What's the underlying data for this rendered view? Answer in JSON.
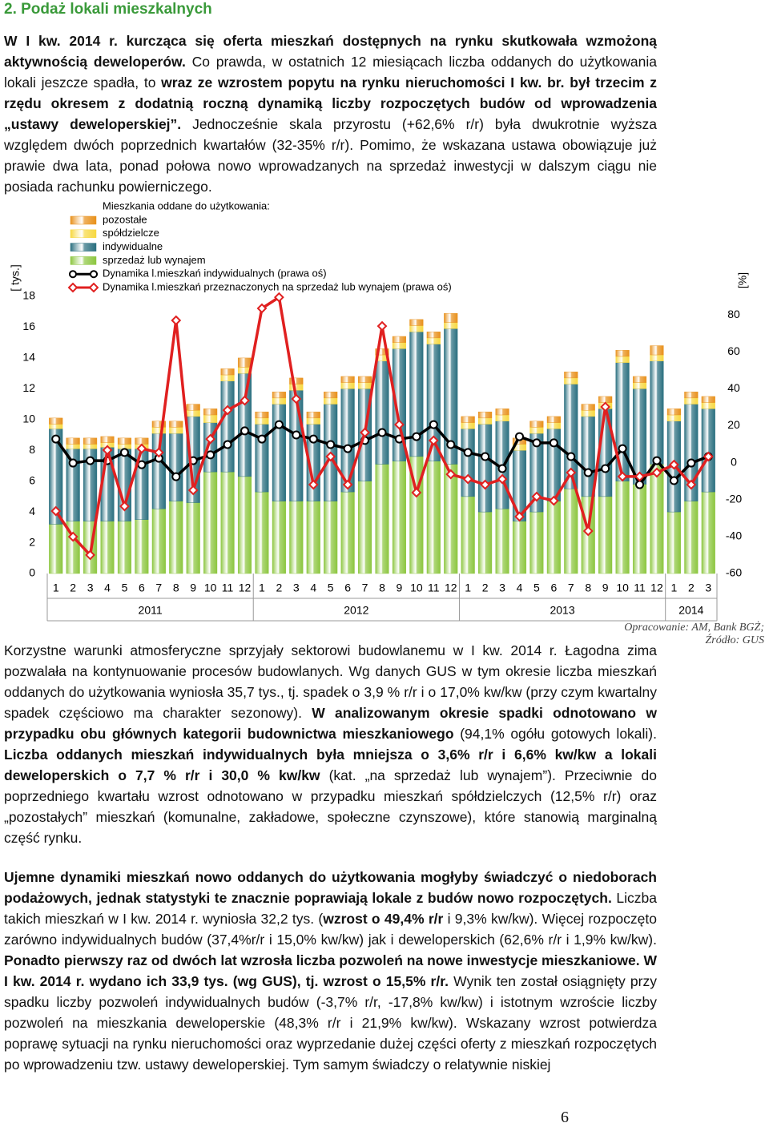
{
  "heading": "2. Podaż lokali mieszkalnych",
  "paragraphs": [
    {
      "runs": [
        {
          "text": "W I kw. 2014 r. kurcząca się oferta mieszkań dostępnych na rynku skutkowała wzmożoną aktywnością deweloperów.",
          "bold": true
        },
        {
          "text": " Co prawda, w ostatnich 12 miesiącach liczba oddanych do użytkowania lokali jeszcze spadła, to ",
          "bold": false
        },
        {
          "text": "wraz ze wzrostem popytu na rynku nieruchomości I kw. br. był trzecim z rzędu okresem z dodatnią roczną dynamiką liczby rozpoczętych budów od wprowadzenia „ustawy deweloperskiej”.",
          "bold": true
        },
        {
          "text": " Jednocześnie skala przyrostu (+62,6% r/r) była dwukrotnie wyższa względem dwóch poprzednich kwartałów (32-35% r/r). Pomimo, że wskazana ustawa obowiązuje już prawie dwa lata, ponad połowa nowo wprowadzanych na sprzedaż inwestycji w dalszym ciągu nie posiada rachunku powierniczego.",
          "bold": false
        }
      ]
    },
    {
      "runs": [
        {
          "text": "Korzystne warunki atmosferyczne sprzyjały sektorowi budowlanemu w I kw. 2014 r. Łagodna zima pozwalała na kontynuowanie procesów budowlanych. Wg danych GUS w tym okresie liczba mieszkań oddanych do użytkowania wyniosła 35,7 tys., tj. spadek o 3,9 % r/r i o 17,0% kw/kw (przy czym kwartalny spadek częściowo ma charakter sezonowy). ",
          "bold": false
        },
        {
          "text": "W analizowanym okresie spadki odnotowano w przypadku obu głównych kategorii budownictwa mieszkaniowego",
          "bold": true
        },
        {
          "text": " (94,1% ogółu gotowych lokali). ",
          "bold": false
        },
        {
          "text": "Liczba oddanych mieszkań indywidualnych była mniejsza o 3,6% r/r i 6,6% kw/kw a lokali deweloperskich o 7,7 % r/r i 30,0 % kw/kw",
          "bold": true
        },
        {
          "text": " (kat. „na sprzedaż lub wynajem”). Przeciwnie do poprzedniego kwartału wzrost odnotowano w przypadku mieszkań spółdzielczych (12,5% r/r) oraz „pozostałych” mieszkań (komunalne, zakładowe, społeczne czynszowe), które stanowią marginalną część rynku.",
          "bold": false
        }
      ]
    },
    {
      "runs": [
        {
          "text": "Ujemne dynamiki mieszkań nowo oddanych do użytkowania mogłyby świadczyć o niedoborach podażowych, jednak statystyki te znacznie poprawiają lokale z budów nowo rozpoczętych.",
          "bold": true
        },
        {
          "text": " Liczba takich mieszkań w I kw. 2014 r. wyniosła 32,2 tys. (",
          "bold": false
        },
        {
          "text": "wzrost o 49,4% r/r",
          "bold": true
        },
        {
          "text": " i 9,3% kw/kw). Więcej rozpoczęto zarówno indywidualnych budów (37,4%r/r i 15,0% kw/kw) jak i deweloperskich (62,6% r/r i 1,9% kw/kw). ",
          "bold": false
        },
        {
          "text": "Ponadto pierwszy raz od dwóch lat wzrosła liczba pozwoleń na nowe inwestycje mieszkaniowe. W I kw. 2014 r. wydano ich 33,9 tys. (wg GUS), tj. wzrost o 15,5% r/r.",
          "bold": true
        },
        {
          "text": " Wynik ten został osiągnięty przy spadku liczby pozwoleń indywidualnych budów (-3,7% r/r, -17,8% kw/kw) i istotnym wzroście liczby pozwoleń na mieszkania deweloperskie (48,3% r/r i 21,9% kw/kw). Wskazany wzrost potwierdza poprawę sytuacji na rynku nieruchomości oraz wyprzedanie dużej części oferty z mieszkań rozpoczętych po wprowadzeniu tzw. ustawy deweloperskiej. Tym samym świadczy o relatywnie niskiej",
          "bold": false
        }
      ]
    }
  ],
  "source": [
    "Opracowanie: AM, Bank BGŻ;",
    "Źródło: GUS"
  ],
  "page_number": "6",
  "chart_data": {
    "type": "stacked_bar_line",
    "legend_title": "Mieszkania oddane do użytkowania:",
    "ylabel": "[ tys.]",
    "y2label": "[%]",
    "groups": [
      {
        "label": "2011",
        "categories": [
          "1",
          "2",
          "3",
          "4",
          "5",
          "6",
          "7",
          "8",
          "9",
          "10",
          "11",
          "12"
        ]
      },
      {
        "label": "2012",
        "categories": [
          "1",
          "2",
          "3",
          "4",
          "5",
          "6",
          "7",
          "8",
          "9",
          "10",
          "11",
          "12"
        ]
      },
      {
        "label": "2013",
        "categories": [
          "1",
          "2",
          "3",
          "4",
          "5",
          "6",
          "7",
          "8",
          "9",
          "10",
          "11",
          "12"
        ]
      },
      {
        "label": "2014",
        "categories": [
          "1",
          "2",
          "3"
        ]
      }
    ],
    "ylim": [
      0,
      18
    ],
    "yticks": [
      0,
      2,
      4,
      6,
      8,
      10,
      12,
      14,
      16,
      18
    ],
    "y2lim": [
      -60,
      90
    ],
    "y2ticks": [
      -60,
      -40,
      -20,
      0,
      20,
      40,
      60,
      80
    ],
    "grid": false,
    "series": [
      {
        "name": "sprzedaż lub wynajem",
        "color": "#8cc63f",
        "kind": "bar",
        "values": [
          3.2,
          3.4,
          3.4,
          3.4,
          3.4,
          3.5,
          4.2,
          4.7,
          4.6,
          6.6,
          6.6,
          6.3,
          5.3,
          4.7,
          4.7,
          4.7,
          4.7,
          5.3,
          6.0,
          7.1,
          7.3,
          7.6,
          7.3,
          7.1,
          5.0,
          4.0,
          4.2,
          3.4,
          4.0,
          4.7,
          5.5,
          5.0,
          5.0,
          6.0,
          5.8,
          7.1,
          4.0,
          4.7,
          5.3
        ]
      },
      {
        "name": "indywidualne",
        "color": "#2a6f7f",
        "kind": "bar",
        "values": [
          6.2,
          4.7,
          4.7,
          4.8,
          4.7,
          4.6,
          4.9,
          4.4,
          5.6,
          3.2,
          5.9,
          6.7,
          4.4,
          6.3,
          7.2,
          5.0,
          6.3,
          6.7,
          6.0,
          6.7,
          7.3,
          8.1,
          7.6,
          8.8,
          4.4,
          5.7,
          5.7,
          4.6,
          5.1,
          4.7,
          6.8,
          5.2,
          5.7,
          7.7,
          6.2,
          6.7,
          5.9,
          6.3,
          5.4
        ]
      },
      {
        "name": "spółdzielcze",
        "color": "#f7d840",
        "kind": "bar",
        "values": [
          0.3,
          0.3,
          0.3,
          0.3,
          0.3,
          0.3,
          0.4,
          0.4,
          0.4,
          0.5,
          0.4,
          0.4,
          0.4,
          0.4,
          0.4,
          0.4,
          0.4,
          0.4,
          0.4,
          0.4,
          0.4,
          0.4,
          0.4,
          0.4,
          0.4,
          0.4,
          0.4,
          0.4,
          0.4,
          0.4,
          0.4,
          0.4,
          0.4,
          0.4,
          0.4,
          0.4,
          0.4,
          0.4,
          0.4
        ]
      },
      {
        "name": "pozostałe",
        "color": "#e8901a",
        "kind": "bar",
        "values": [
          0.4,
          0.4,
          0.4,
          0.4,
          0.4,
          0.4,
          0.4,
          0.4,
          0.4,
          0.4,
          0.4,
          0.6,
          0.4,
          0.4,
          0.4,
          0.4,
          0.4,
          0.4,
          0.4,
          0.4,
          0.4,
          0.4,
          0.4,
          0.6,
          0.4,
          0.4,
          0.4,
          0.4,
          0.4,
          0.4,
          0.4,
          0.4,
          0.4,
          0.4,
          0.4,
          0.6,
          0.4,
          0.4,
          0.4
        ]
      },
      {
        "name": "Dynamika l.mieszkań indywidualnych (prawa oś)",
        "color": "#000000",
        "kind": "line",
        "marker": "circle",
        "axis": "y2",
        "values": [
          12.8,
          -0.2,
          1.1,
          1.1,
          5.5,
          -1.1,
          2.4,
          -7.6,
          1.1,
          4.2,
          9.8,
          17.2,
          12.8,
          20.6,
          15.0,
          12.8,
          9.8,
          7.6,
          12.0,
          16.3,
          12.8,
          14.1,
          20.6,
          9.8,
          5.5,
          3.3,
          -3.2,
          14.1,
          10.7,
          10.7,
          3.3,
          -5.4,
          -3.2,
          7.6,
          -11.9,
          1.1,
          -9.7,
          -0.2,
          3.3
        ]
      },
      {
        "name": "Dynamika l.mieszkań przeznaczonych na sprzedaż lub wynajem (prawa oś)",
        "color": "#e02020",
        "kind": "line",
        "marker": "diamond",
        "axis": "y2",
        "values": [
          -26.2,
          -40.1,
          -50.0,
          6.8,
          -23.6,
          7.6,
          5.5,
          77.0,
          -14.9,
          12.8,
          28.4,
          33.6,
          83.5,
          89.5,
          34.5,
          -11.9,
          3.3,
          -11.9,
          16.3,
          73.9,
          20.6,
          -16.2,
          12.0,
          -6.3,
          -8.9,
          -11.9,
          -8.9,
          -29.2,
          -18.4,
          -20.6,
          -5.4,
          -37.0,
          30.2,
          -7.5,
          -7.5,
          -5.4,
          -1.1,
          -11.9,
          3.3
        ]
      }
    ]
  }
}
